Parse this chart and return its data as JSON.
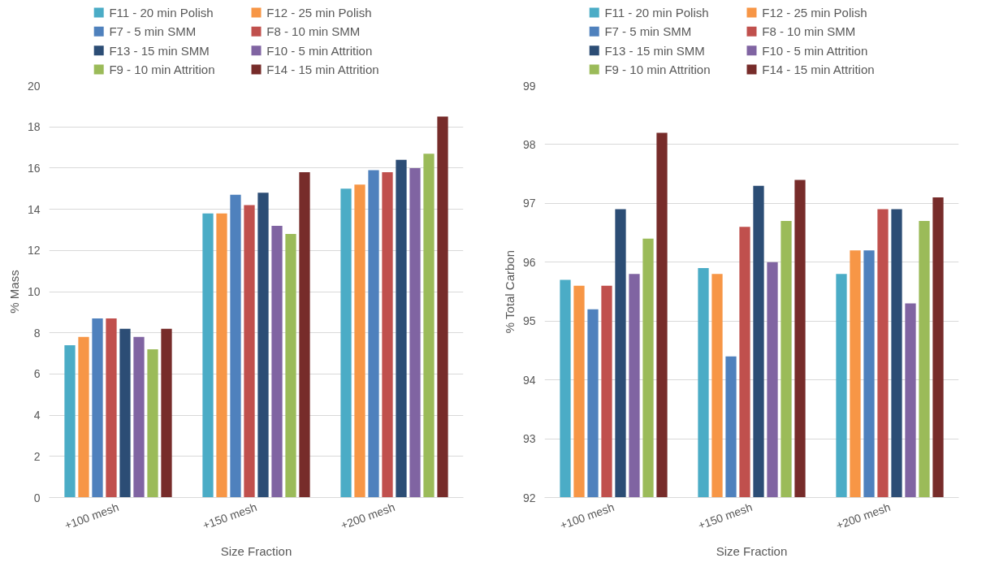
{
  "chart_data": [
    {
      "type": "bar",
      "xlabel": "Size Fraction",
      "ylabel": "% Mass",
      "categories": [
        "+100 mesh",
        "+150 mesh",
        "+200 mesh"
      ],
      "ylim": [
        0,
        20
      ],
      "yticks": [
        0,
        2,
        4,
        6,
        8,
        10,
        12,
        14,
        16,
        18,
        20
      ],
      "grid": "y",
      "legend": "top",
      "series": [
        {
          "name": "F11 - 20 min Polish",
          "color": "#4bacc6",
          "values": [
            7.4,
            13.8,
            15.0
          ]
        },
        {
          "name": "F12 - 25 min Polish",
          "color": "#f79646",
          "values": [
            7.8,
            13.8,
            15.2
          ]
        },
        {
          "name": "F7 - 5 min SMM",
          "color": "#4f81bd",
          "values": [
            8.7,
            14.7,
            15.9
          ]
        },
        {
          "name": "F8 - 10 min SMM",
          "color": "#c0504d",
          "values": [
            8.7,
            14.2,
            15.8
          ]
        },
        {
          "name": "F13 - 15 min SMM",
          "color": "#2c4d75",
          "values": [
            8.2,
            14.8,
            16.4
          ]
        },
        {
          "name": "F10 - 5 min Attrition",
          "color": "#8064a2",
          "values": [
            7.8,
            13.2,
            16.0
          ]
        },
        {
          "name": "F9 - 10 min Attrition",
          "color": "#9bbb59",
          "values": [
            7.2,
            12.8,
            16.7
          ]
        },
        {
          "name": "F14 - 15 min Attrition",
          "color": "#772c2a",
          "values": [
            8.2,
            15.8,
            18.5
          ]
        }
      ]
    },
    {
      "type": "bar",
      "xlabel": "Size Fraction",
      "ylabel": "% Total Carbon",
      "categories": [
        "+100 mesh",
        "+150 mesh",
        "+200 mesh"
      ],
      "ylim": [
        92,
        99
      ],
      "yticks": [
        92,
        93,
        94,
        95,
        96,
        97,
        98,
        99
      ],
      "grid": "y",
      "legend": "top",
      "series": [
        {
          "name": "F11 - 20 min Polish",
          "color": "#4bacc6",
          "values": [
            95.7,
            95.9,
            95.8
          ]
        },
        {
          "name": "F12 - 25 min Polish",
          "color": "#f79646",
          "values": [
            95.6,
            95.8,
            96.2
          ]
        },
        {
          "name": "F7 - 5 min SMM",
          "color": "#4f81bd",
          "values": [
            95.2,
            94.4,
            96.2
          ]
        },
        {
          "name": "F8 - 10 min SMM",
          "color": "#c0504d",
          "values": [
            95.6,
            96.6,
            96.9
          ]
        },
        {
          "name": "F13 - 15 min SMM",
          "color": "#2c4d75",
          "values": [
            96.9,
            97.3,
            96.9
          ]
        },
        {
          "name": "F10 - 5 min Attrition",
          "color": "#8064a2",
          "values": [
            95.8,
            96.0,
            95.3
          ]
        },
        {
          "name": "F9 - 10 min Attrition",
          "color": "#9bbb59",
          "values": [
            96.4,
            96.7,
            96.7
          ]
        },
        {
          "name": "F14 - 15 min Attrition",
          "color": "#772c2a",
          "values": [
            98.2,
            97.4,
            97.1
          ]
        }
      ]
    }
  ]
}
